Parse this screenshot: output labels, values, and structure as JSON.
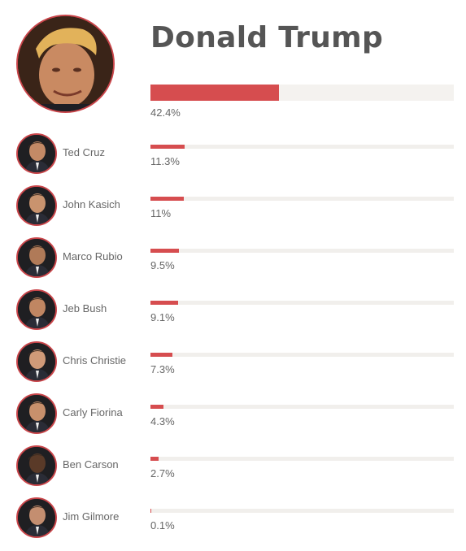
{
  "chart_data": {
    "type": "bar",
    "leader": {
      "name": "Donald Trump",
      "value": 42.4,
      "label": "42.4%"
    },
    "categories": [
      "Ted Cruz",
      "John Kasich",
      "Marco Rubio",
      "Jeb Bush",
      "Chris Christie",
      "Carly Fiorina",
      "Ben Carson",
      "Jim Gilmore"
    ],
    "values": [
      11.3,
      11,
      9.5,
      9.1,
      7.3,
      4.3,
      2.7,
      0.1
    ],
    "labels": [
      "11.3%",
      "11%",
      "9.5%",
      "9.1%",
      "7.3%",
      "4.3%",
      "2.7%",
      "0.1%"
    ],
    "xlim": [
      0,
      100
    ],
    "colors": {
      "bar": "#d64d4f",
      "track": "#f4f2ef",
      "ring": "#c9454a"
    }
  }
}
